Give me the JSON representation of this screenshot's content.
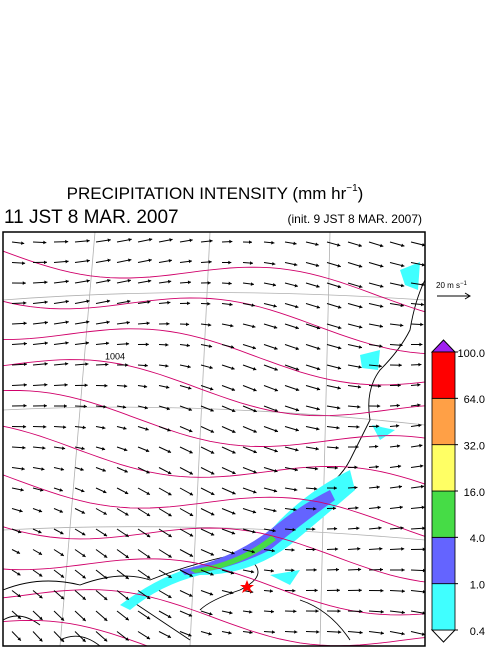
{
  "header": {
    "title": {
      "text": "PRECIPITATION INTENSITY (mm hr",
      "superscript": "−1",
      "suffix": ")"
    },
    "valid_time": "11 JST 8 MAR. 2007",
    "init_time": "(init. 9 JST 8 MAR. 2007)"
  },
  "map": {
    "contour_label": "1004",
    "wind_scale": {
      "text": "20 m s",
      "superscript": "−1"
    }
  },
  "colorbar": {
    "levels": [
      {
        "value": 0.4,
        "label": "0.4"
      },
      {
        "value": 1,
        "label": "1.0"
      },
      {
        "value": 4,
        "label": "4.0"
      },
      {
        "value": 16,
        "label": "16.0"
      },
      {
        "value": 32,
        "label": "32.0"
      },
      {
        "value": 64,
        "label": "64.0"
      },
      {
        "value": 100,
        "label": "100.0"
      }
    ],
    "colors": [
      "#40ffff",
      "#6464ff",
      "#46dc46",
      "#ffff64",
      "#ffa046",
      "#ff0000"
    ],
    "under_color": "#ffffff",
    "over_color": "#a020f0"
  }
}
